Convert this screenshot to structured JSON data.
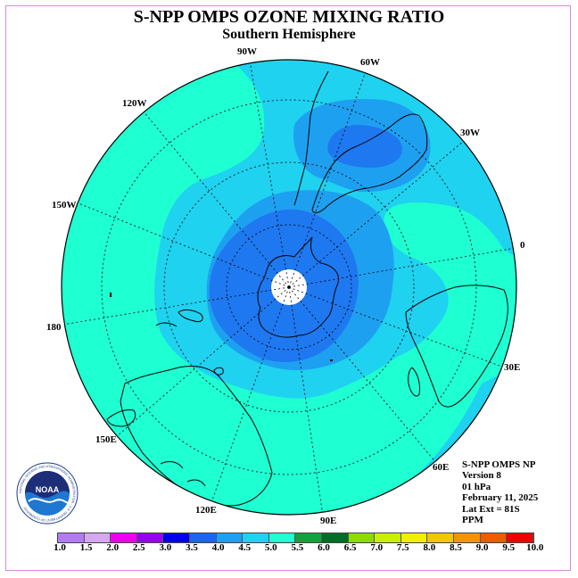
{
  "title": "S-NPP OMPS OZONE MIXING RATIO",
  "subtitle": "Southern Hemisphere",
  "longitude_labels": {
    "lon_90w": "90W",
    "lon_60w": "60W",
    "lon_30w": "30W",
    "lon_0": "0",
    "lon_30e": "30E",
    "lon_60e": "60E",
    "lon_90e": "90E",
    "lon_120e": "120E",
    "lon_150e": "150E",
    "lon_180": "180",
    "lon_150w": "150W",
    "lon_120w": "120W"
  },
  "info": {
    "instrument": "S-NPP OMPS NP",
    "version": "Version 8",
    "level": "01 hPa",
    "date": "February 11, 2025",
    "lat_ext": "Lat Ext = 81S",
    "units": "PPM"
  },
  "logo_text": "NOAA",
  "logo_ring_text": "NATIONAL OCEANIC AND ATMOSPHERIC ADMINISTRATION · U.S. DEPARTMENT OF COMMERCE",
  "colorbar": {
    "labels": [
      "1.0",
      "1.5",
      "2.0",
      "2.5",
      "3.0",
      "3.5",
      "4.0",
      "4.5",
      "5.0",
      "5.5",
      "6.0",
      "6.5",
      "7.0",
      "7.5",
      "8.0",
      "8.5",
      "9.0",
      "9.5",
      "10.0"
    ],
    "colors": [
      "#b27cf0",
      "#d6a8f0",
      "#f000f0",
      "#9600f0",
      "#0000f0",
      "#1e64f0",
      "#1ea0f0",
      "#1ed2f0",
      "#1effd2",
      "#14a03c",
      "#006e28",
      "#8cdc00",
      "#c8f000",
      "#f0f000",
      "#f0c800",
      "#f09600",
      "#f05a00",
      "#f00000",
      "#8c5a3c"
    ]
  },
  "map_colors": {
    "band_3_5": "#1e78f0",
    "band_4_0": "#1ea0f0",
    "band_4_5": "#1ed2f0",
    "band_5_0": "#1effd2",
    "pole_hole": "#ffffff"
  }
}
